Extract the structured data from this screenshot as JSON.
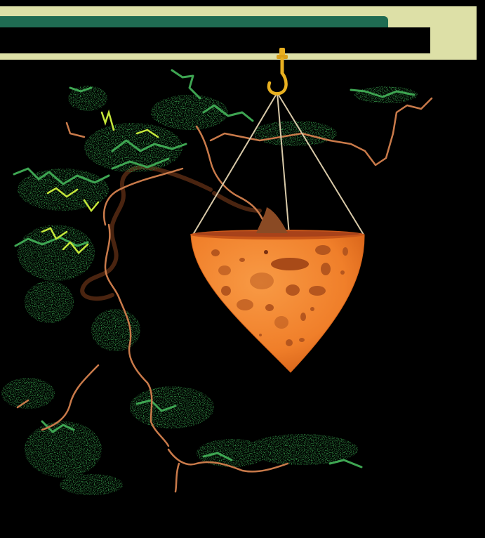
{
  "scene": {
    "colors": {
      "background": "#000000",
      "hud_frame": "#dde0a7",
      "hud_bar": "#1f6b52",
      "hud_panel": "#000000",
      "foliage_dark": "#2a7a3a",
      "foliage_mid": "#3ea552",
      "foliage_light": "#c6e83a",
      "branch": "#c97a4a",
      "trunk_dark": "#4a2410",
      "pot": "#f07f2a",
      "pot_rim": "#c8561a",
      "pot_spots": "#b5561e",
      "hook": "#e8b020",
      "rope": "#d8c9a8"
    },
    "icons": {
      "hook": "hanging-hook-icon",
      "pot": "hanging-cone-pot",
      "tree": "cascade-bonsai-tree"
    }
  }
}
